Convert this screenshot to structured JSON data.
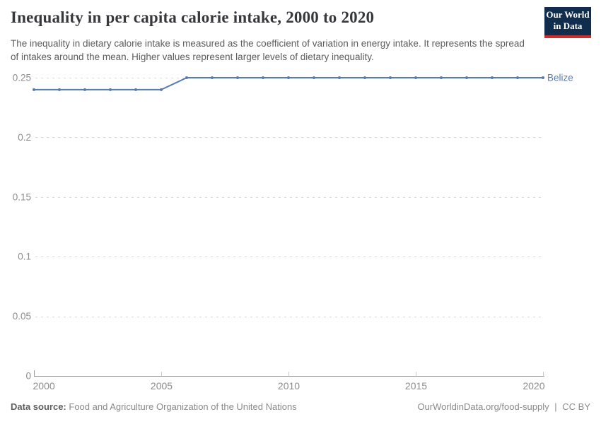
{
  "header": {
    "title": "Inequality in per capita calorie intake, 2000 to 2020",
    "subtitle": "The inequality in dietary calorie intake is measured as the coefficient of variation in energy intake. It represents the spread of intakes around the mean. Higher values represent larger levels of dietary inequality.",
    "logo": {
      "line1": "Our World",
      "line2": "in Data"
    }
  },
  "chart_data": {
    "type": "line",
    "title": "Inequality in per capita calorie intake, 2000 to 2020",
    "xlabel": "",
    "ylabel": "",
    "xlim": [
      2000,
      2020
    ],
    "ylim": [
      0,
      0.25
    ],
    "x_ticks": [
      2000,
      2005,
      2010,
      2015,
      2020
    ],
    "y_ticks": [
      0,
      0.05,
      0.1,
      0.15,
      0.2,
      0.25
    ],
    "y_tick_labels": [
      "0",
      "0.05",
      "0.1",
      "0.15",
      "0.2",
      "0.25"
    ],
    "grid": "horizontal-dashed",
    "legend_position": "end-of-line-label",
    "series": [
      {
        "name": "Belize",
        "color": "#587ab0",
        "x": [
          2000,
          2001,
          2002,
          2003,
          2004,
          2005,
          2006,
          2007,
          2008,
          2009,
          2010,
          2011,
          2012,
          2013,
          2014,
          2015,
          2016,
          2017,
          2018,
          2019,
          2020
        ],
        "values": [
          0.24,
          0.24,
          0.24,
          0.24,
          0.24,
          0.24,
          0.25,
          0.25,
          0.25,
          0.25,
          0.25,
          0.25,
          0.25,
          0.25,
          0.25,
          0.25,
          0.25,
          0.25,
          0.25,
          0.25,
          0.25
        ]
      }
    ]
  },
  "footer": {
    "source_label": "Data source:",
    "source_text": "Food and Agriculture Organization of the United Nations",
    "link_text": "OurWorldinData.org/food-supply",
    "separator": "|",
    "license": "CC BY"
  },
  "colors": {
    "line": "#587ab0",
    "grid": "#d9d9d9",
    "axis": "#9a9a9a",
    "tick": "#c8c8c8",
    "axis_text": "#8c8c8c",
    "title_text": "#37383c",
    "subtitle_text": "#5c5c5c",
    "logo_bg": "#102d4e",
    "logo_stripe": "#cc2f2e"
  }
}
